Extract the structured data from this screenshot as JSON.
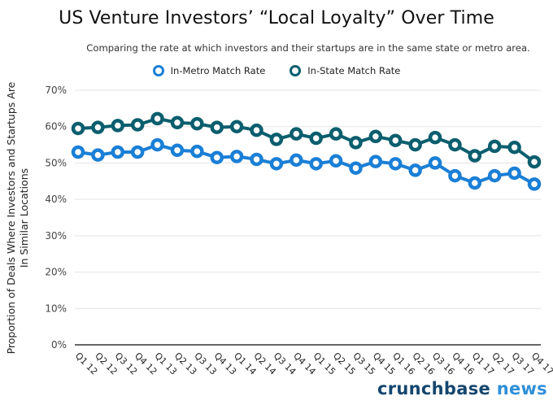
{
  "chart_data": {
    "type": "line",
    "title": "US Venture Investors’ “Local Loyalty” Over Time",
    "subtitle": "Comparing the rate at which investors and their startups are in the same state or metro area.",
    "xlabel": "",
    "ylabel": "Proportion of Deals Where Investors and Startups Are In Similar Locations",
    "ylim": [
      0,
      70
    ],
    "yticks": [
      0,
      10,
      20,
      30,
      40,
      50,
      60,
      70
    ],
    "ytick_labels": [
      "0%",
      "10%",
      "20%",
      "30%",
      "40%",
      "50%",
      "60%",
      "70%"
    ],
    "grid": true,
    "legend_position": "top-center",
    "categories": [
      "Q1 12",
      "Q2 12",
      "Q3 12",
      "Q4 12",
      "Q1 13",
      "Q2 13",
      "Q3 13",
      "Q4 13",
      "Q1 14",
      "Q2 14",
      "Q3 14",
      "Q4 14",
      "Q1 15",
      "Q2 15",
      "Q3 15",
      "Q4 15",
      "Q1 16",
      "Q2 16",
      "Q3 16",
      "Q4 16",
      "Q1 17",
      "Q2 17",
      "Q3 17",
      "Q4 17"
    ],
    "series": [
      {
        "name": "In-Metro Match Rate",
        "color": "#1a7fd6",
        "values": [
          53.0,
          52.2,
          53.0,
          53.0,
          55.0,
          53.5,
          53.2,
          51.5,
          51.8,
          51.0,
          49.8,
          50.8,
          49.8,
          50.6,
          48.6,
          50.4,
          49.8,
          48.0,
          50.0,
          46.5,
          44.5,
          46.5,
          47.2,
          44.2
        ]
      },
      {
        "name": "In-State Match Rate",
        "color": "#0b5e6e",
        "values": [
          59.5,
          59.8,
          60.3,
          60.5,
          62.2,
          61.1,
          60.8,
          59.8,
          60.0,
          59.0,
          56.5,
          58.0,
          56.8,
          58.0,
          55.6,
          57.3,
          56.2,
          55.0,
          57.0,
          55.0,
          52.0,
          54.6,
          54.3,
          50.3
        ]
      }
    ]
  },
  "branding": {
    "logo_part1": "crunchbase",
    "logo_part2": "news"
  }
}
